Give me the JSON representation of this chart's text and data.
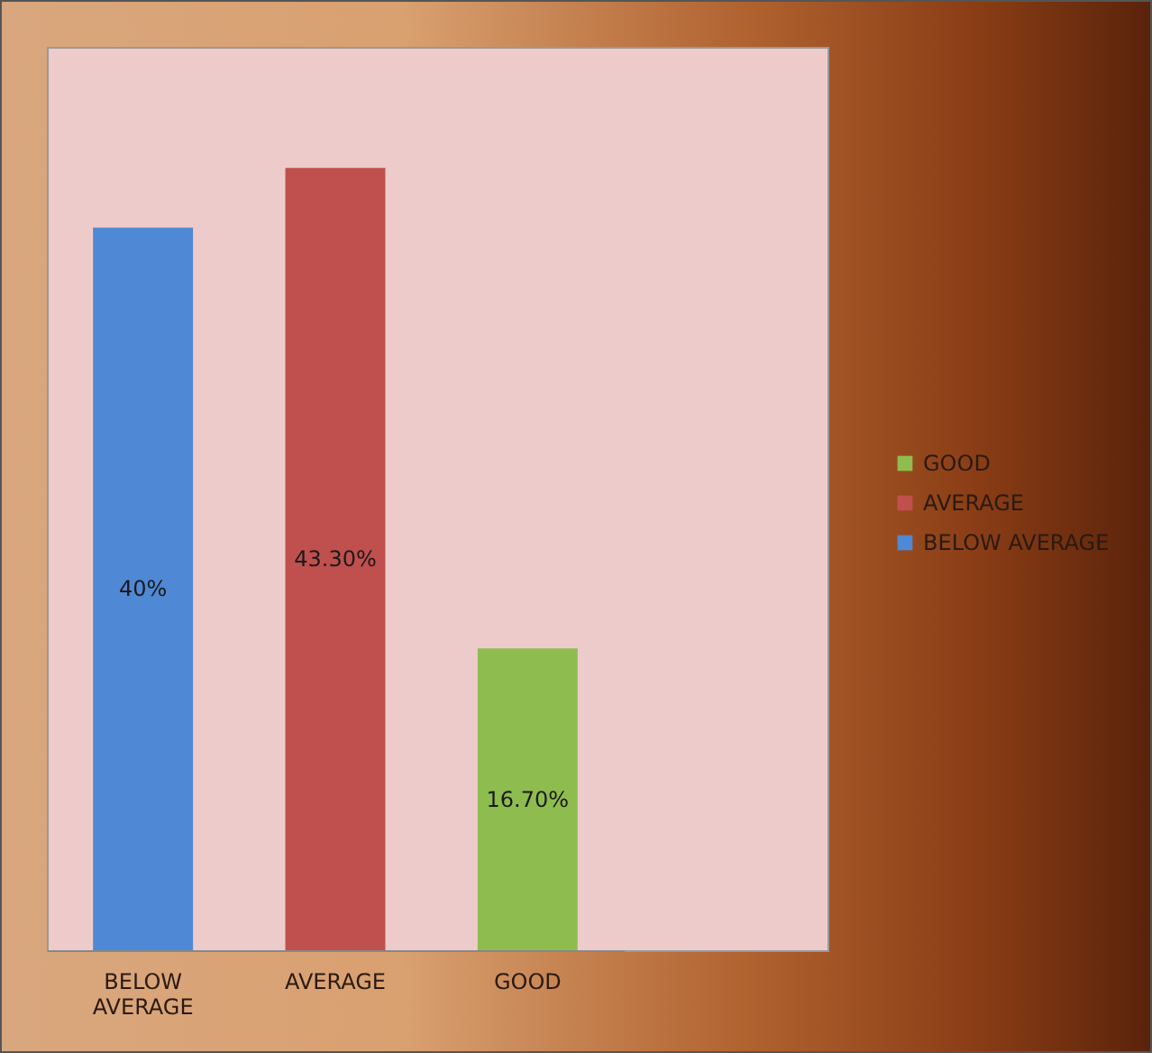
{
  "chart_data": {
    "type": "bar",
    "categories": [
      "BELOW AVERAGE",
      "AVERAGE",
      "GOOD"
    ],
    "series": [
      {
        "name": "BELOW AVERAGE",
        "color": "#4f88d4",
        "values": [
          40,
          null,
          null
        ],
        "value_labels": [
          "40%",
          null,
          null
        ]
      },
      {
        "name": "AVERAGE",
        "color": "#c0504d",
        "values": [
          null,
          43.3,
          null
        ],
        "value_labels": [
          null,
          "43.30%",
          null
        ]
      },
      {
        "name": "GOOD",
        "color": "#8fbc4f",
        "values": [
          null,
          null,
          16.7
        ],
        "value_labels": [
          null,
          null,
          "16.70%"
        ]
      }
    ],
    "legend": "right"
  }
}
